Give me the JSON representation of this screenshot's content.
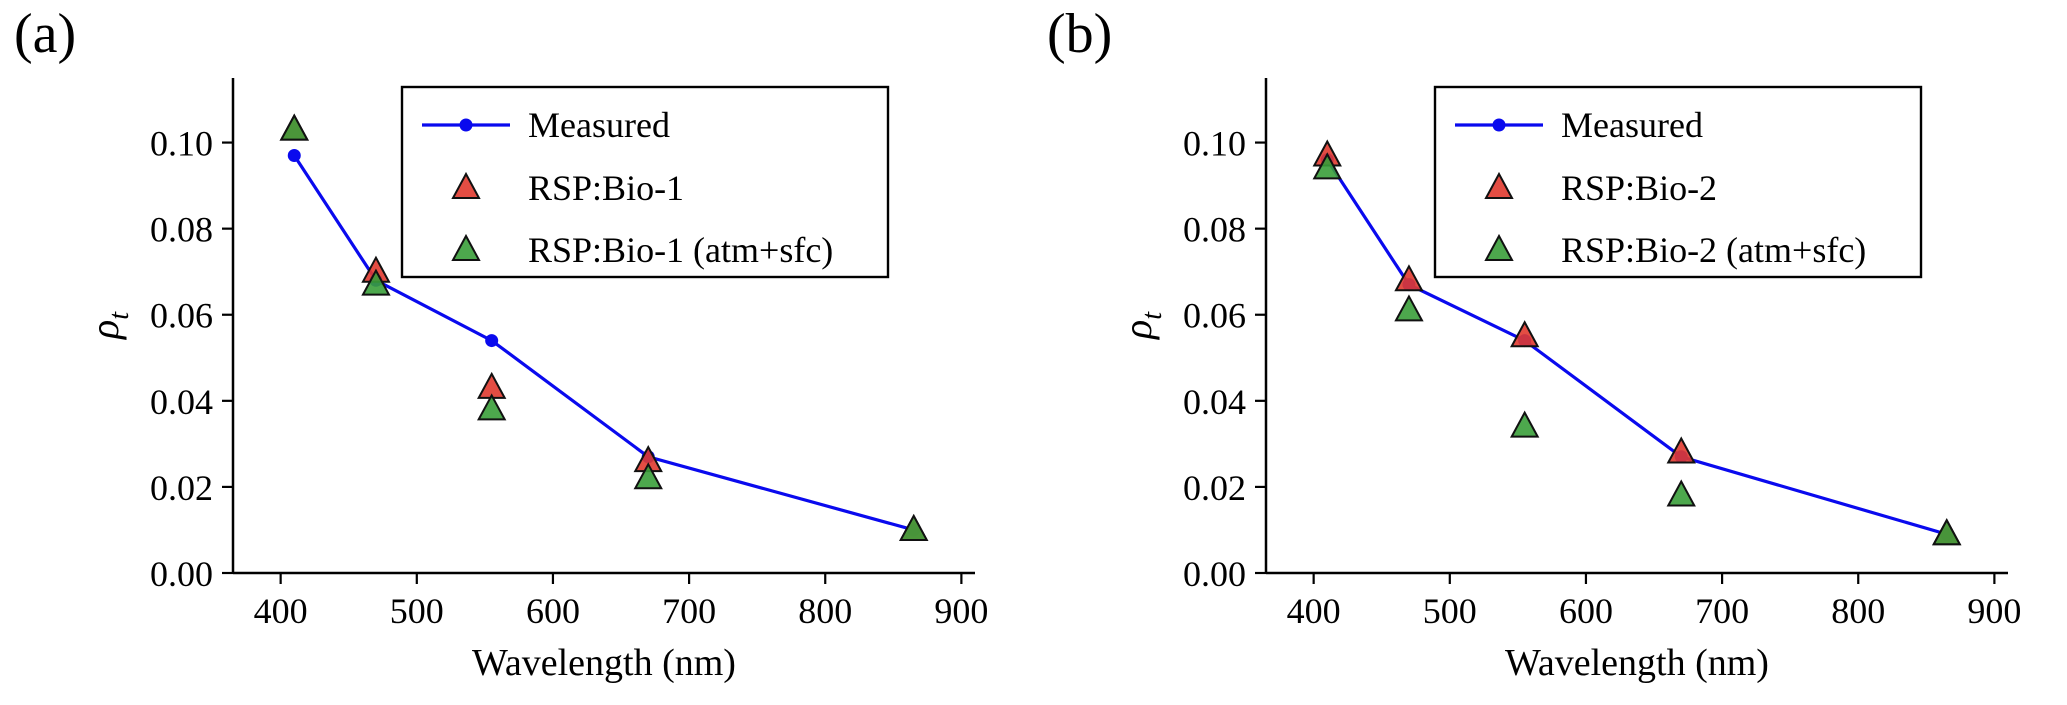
{
  "figure": {
    "background": "#ffffff"
  },
  "chart_data": [
    {
      "type": "line",
      "panel_label": "(a)",
      "xlabel": "Wavelength (nm)",
      "ylabel": {
        "symbol": "ρ",
        "subscript": "t"
      },
      "xlim": [
        365,
        910
      ],
      "ylim": [
        0,
        0.115
      ],
      "xticks": [
        400,
        500,
        600,
        700,
        800,
        900
      ],
      "xtick_labels": [
        "400",
        "500",
        "600",
        "700",
        "800",
        "900"
      ],
      "yticks": [
        0.0,
        0.02,
        0.04,
        0.06,
        0.08,
        0.1
      ],
      "ytick_labels": [
        "0.00",
        "0.02",
        "0.04",
        "0.06",
        "0.08",
        "0.10"
      ],
      "x": [
        410,
        470,
        555,
        670,
        865
      ],
      "series": [
        {
          "name": "Measured",
          "marker": "circle-line",
          "color": "#0a0aee",
          "edge": "#0a0aee",
          "values": [
            0.097,
            0.068,
            0.054,
            0.027,
            0.01
          ]
        },
        {
          "name": "RSP:Bio-1",
          "marker": "triangle",
          "color": "#e03a2f",
          "edge": "#111111",
          "values": [
            0.103,
            0.07,
            0.043,
            0.026,
            0.01
          ]
        },
        {
          "name": "RSP:Bio-1 (atm+sfc)",
          "marker": "triangle",
          "color": "#3a9e3a",
          "edge": "#111111",
          "values": [
            0.103,
            0.067,
            0.038,
            0.022,
            0.01
          ]
        }
      ],
      "legend_position": "upper right",
      "grid": false
    },
    {
      "type": "line",
      "panel_label": "(b)",
      "xlabel": "Wavelength (nm)",
      "ylabel": {
        "symbol": "ρ",
        "subscript": "t"
      },
      "xlim": [
        365,
        910
      ],
      "ylim": [
        0,
        0.115
      ],
      "xticks": [
        400,
        500,
        600,
        700,
        800,
        900
      ],
      "xtick_labels": [
        "400",
        "500",
        "600",
        "700",
        "800",
        "900"
      ],
      "yticks": [
        0.0,
        0.02,
        0.04,
        0.06,
        0.08,
        0.1
      ],
      "ytick_labels": [
        "0.00",
        "0.02",
        "0.04",
        "0.06",
        "0.08",
        "0.10"
      ],
      "x": [
        410,
        470,
        555,
        670,
        865
      ],
      "series": [
        {
          "name": "Measured",
          "marker": "circle-line",
          "color": "#0a0aee",
          "edge": "#0a0aee",
          "values": [
            0.096,
            0.067,
            0.054,
            0.027,
            0.009
          ]
        },
        {
          "name": "RSP:Bio-2",
          "marker": "triangle",
          "color": "#e03a2f",
          "edge": "#111111",
          "values": [
            0.097,
            0.068,
            0.055,
            0.028,
            0.009
          ]
        },
        {
          "name": "RSP:Bio-2 (atm+sfc)",
          "marker": "triangle",
          "color": "#3a9e3a",
          "edge": "#111111",
          "values": [
            0.094,
            0.061,
            0.034,
            0.018,
            0.009
          ]
        }
      ],
      "legend_position": "upper right",
      "grid": false
    }
  ]
}
